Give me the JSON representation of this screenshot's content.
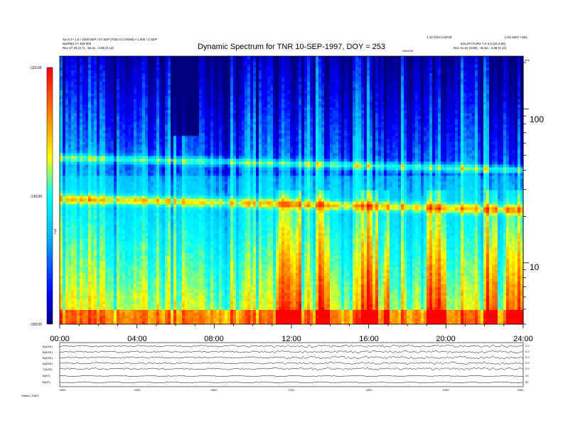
{
  "header": {
    "left_line1": "Sa 0.0 • 1.0 / 2000 SEP / 07 SEP [TGD 0.0 (NOW) • 1.000 / 2 SEP",
    "left_line2": "NS/PB3 3 • 350.000",
    "left_line3": "Rec  27.35 (3.7), -35.41, -3.85 (0.12)",
    "right_line1": "1.10 VGO 3.8F03",
    "right_line2": "LOS 6007 • 601",
    "right_line3": "EGL/PCTURS  7.0 3.5 (20.3.90)",
    "right_line4": "Rec  41.22 (0.89), -32.54, -4.38 (0.12)",
    "title": "Dynamic Spectrum for TNR 10-SEP-1997, DOY = 253",
    "small_mid_label": "OBVIOE"
  },
  "chart_data": {
    "type": "heatmap",
    "title": "Dynamic Spectrum for TNR 10-SEP-1997, DOY = 253",
    "x_ticks": [
      "00:00",
      "04:00",
      "08:00",
      "12:00",
      "16:00",
      "20:00",
      "24:00"
    ],
    "x_range_hours": [
      0,
      24
    ],
    "y_scale": "log",
    "y_ticks": [
      "100",
      "10"
    ],
    "y_unit_label": "kHz",
    "y_range_khz": [
      4,
      220
    ],
    "colorbar": {
      "label": "TNR",
      "ticks": [
        "-110.00",
        "-130.00",
        "-150.00"
      ],
      "range_db": [
        -150,
        -110
      ],
      "colors": [
        "#00007f",
        "#0000ff",
        "#00bfff",
        "#00ffff",
        "#ffff00",
        "#ff7f00",
        "#ff0000"
      ]
    },
    "features": [
      {
        "name": "upper emission band",
        "start_khz": 48,
        "end_khz": 40
      },
      {
        "name": "lower emission band",
        "start_khz": 26,
        "end_khz": 22
      }
    ]
  },
  "lower_panel": {
    "left_labels": [
      "B(AGE)",
      "B(AGE)",
      "B(AGE)",
      "N(AGE)",
      "T(AGE)",
      "B(NT)",
      "B(NT)"
    ],
    "right_labels": [
      "2.0",
      "2.0",
      "2.0",
      "2.0",
      "2.0",
      "20",
      "50"
    ],
    "x_ticks": [
      "0000",
      "0400",
      "0800",
      "1200",
      "1600",
      "2000",
      "2400"
    ],
    "footer_label": "Status / DIAG"
  }
}
